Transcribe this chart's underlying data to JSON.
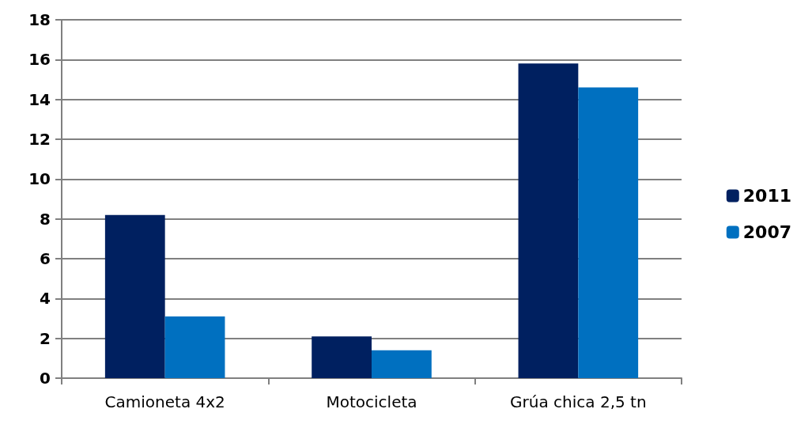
{
  "chart_data": {
    "type": "bar",
    "categories": [
      "Camioneta 4x2",
      "Motocicleta",
      "Grúa chica 2,5 tn"
    ],
    "series": [
      {
        "name": "2011",
        "color": "#002060",
        "values": [
          8.2,
          2.1,
          15.8
        ]
      },
      {
        "name": "2007",
        "color": "#0070c0",
        "values": [
          3.1,
          1.4,
          14.6
        ]
      }
    ],
    "ylim": [
      0,
      18
    ],
    "yticks": [
      0,
      2,
      4,
      6,
      8,
      10,
      12,
      14,
      16,
      18
    ],
    "grid": "y",
    "legend": "right"
  }
}
